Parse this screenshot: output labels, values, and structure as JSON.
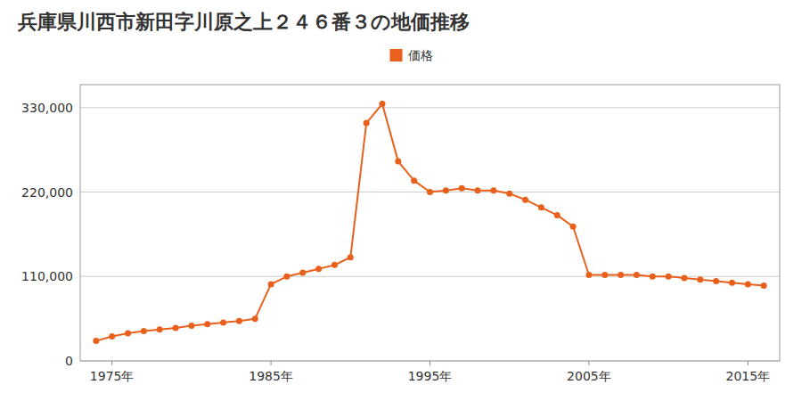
{
  "chart_data": {
    "type": "line",
    "title": "兵庫県川西市新田字川原之上２４６番３の地価推移",
    "x": [
      1974,
      1975,
      1976,
      1977,
      1978,
      1979,
      1980,
      1981,
      1982,
      1983,
      1984,
      1985,
      1986,
      1987,
      1988,
      1989,
      1990,
      1991,
      1992,
      1993,
      1994,
      1995,
      1996,
      1997,
      1998,
      1999,
      2000,
      2001,
      2002,
      2003,
      2004,
      2005,
      2006,
      2007,
      2008,
      2009,
      2010,
      2011,
      2012,
      2013,
      2014,
      2015,
      2016
    ],
    "series": [
      {
        "name": "価格",
        "color": "#e8601c",
        "marker": "circle",
        "values": [
          26000,
          32000,
          36000,
          39000,
          41000,
          43000,
          46000,
          48000,
          50000,
          52000,
          55000,
          100000,
          110000,
          115000,
          120000,
          125000,
          135000,
          310000,
          335000,
          260000,
          235000,
          220000,
          222000,
          225000,
          222000,
          222000,
          218000,
          210000,
          200000,
          190000,
          175000,
          112000,
          112000,
          112000,
          112000,
          110000,
          110000,
          108000,
          106000,
          104000,
          102000,
          100000,
          98000
        ]
      }
    ],
    "xlim": [
      1973,
      2017
    ],
    "ylim": [
      0,
      360000
    ],
    "xticks": [
      {
        "value": 1975,
        "label": "1975年"
      },
      {
        "value": 1985,
        "label": "1985年"
      },
      {
        "value": 1995,
        "label": "1995年"
      },
      {
        "value": 2005,
        "label": "2005年"
      },
      {
        "value": 2015,
        "label": "2015年"
      }
    ],
    "yticks": [
      0,
      {
        "value": 110000,
        "label": "110,000"
      },
      {
        "value": 220000,
        "label": "220,000"
      },
      {
        "value": 330000,
        "label": "330,000"
      }
    ],
    "grid": "y",
    "legend": "top"
  }
}
